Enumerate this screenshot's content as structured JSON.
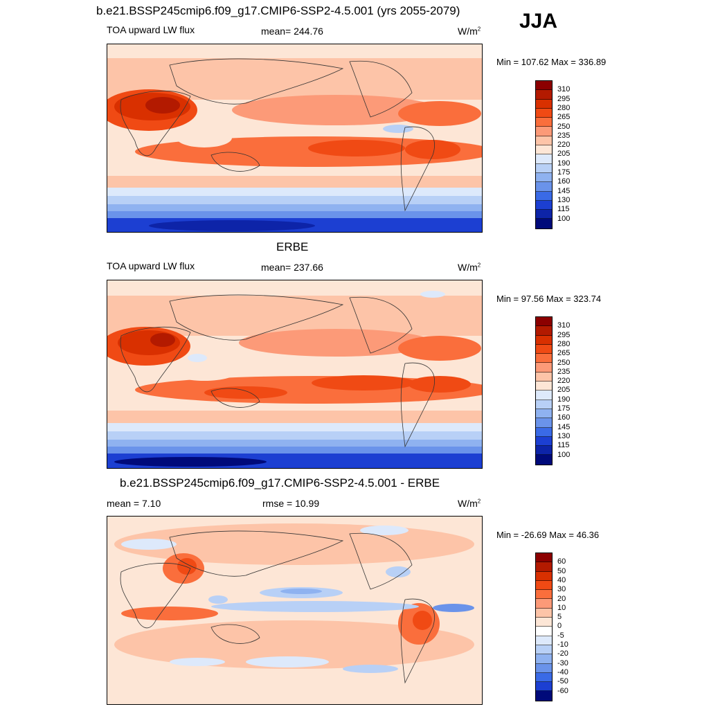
{
  "header": {
    "title": "b.e21.BSSP245cmip6.f09_g17.CMIP6-SSP2-4.5.001 (yrs 2055-2079)",
    "season": "JJA"
  },
  "panels": [
    {
      "title": "",
      "left_label": "TOA upward LW flux",
      "center_label": "mean= 244.76",
      "units": "W/m",
      "units_sup": "2",
      "minmax": "Min = 107.62 Max = 336.89",
      "colorbar_ticks": [
        "310",
        "295",
        "280",
        "265",
        "250",
        "235",
        "220",
        "205",
        "190",
        "175",
        "160",
        "145",
        "130",
        "115",
        "100"
      ]
    },
    {
      "title": "ERBE",
      "left_label": "TOA upward LW flux",
      "center_label": "mean= 237.66",
      "units": "W/m",
      "units_sup": "2",
      "minmax": "Min =  97.56 Max = 323.74",
      "colorbar_ticks": [
        "310",
        "295",
        "280",
        "265",
        "250",
        "235",
        "220",
        "205",
        "190",
        "175",
        "160",
        "145",
        "130",
        "115",
        "100"
      ]
    },
    {
      "title": "b.e21.BSSP245cmip6.f09_g17.CMIP6-SSP2-4.5.001 - ERBE",
      "left_label": "mean =   7.10",
      "center_label": "rmse =  10.99",
      "units": "W/m",
      "units_sup": "2",
      "minmax": "Min = -26.69 Max =  46.36",
      "colorbar_ticks": [
        "60",
        "50",
        "40",
        "30",
        "20",
        "10",
        "5",
        "0",
        "-5",
        "-10",
        "-20",
        "-30",
        "-40",
        "-50",
        "-60"
      ]
    }
  ],
  "colors": {
    "absolute_bins": [
      "#8c0000",
      "#b31a00",
      "#d93000",
      "#f04a14",
      "#fa6e3c",
      "#fc9a78",
      "#fdc4a8",
      "#fde6d6",
      "#dde9fb",
      "#b8d0f6",
      "#8fb2f0",
      "#6a93ea",
      "#3a6ae6",
      "#1c3fd2",
      "#0d24a8",
      "#000a7a"
    ],
    "diff_bins": [
      "#8c0000",
      "#b31a00",
      "#d93000",
      "#f04a14",
      "#fa6e3c",
      "#fc9a78",
      "#fdc4a8",
      "#fde6d6",
      "#ffffff",
      "#dde9fb",
      "#b8d0f6",
      "#8fb2f0",
      "#6a93ea",
      "#3a6ae6",
      "#1c3fd2",
      "#000a7a"
    ]
  },
  "chart_data": [
    {
      "type": "heatmap",
      "title": "b.e21.BSSP245cmip6.f09_g17.CMIP6-SSP2-4.5.001 (yrs 2055-2079)",
      "variable": "TOA upward LW flux",
      "units": "W/m2",
      "season": "JJA",
      "mean": 244.76,
      "min": 107.62,
      "max": 336.89,
      "contour_levels": [
        100,
        115,
        130,
        145,
        160,
        175,
        190,
        205,
        220,
        235,
        250,
        265,
        280,
        295,
        310
      ]
    },
    {
      "type": "heatmap",
      "title": "ERBE",
      "variable": "TOA upward LW flux",
      "units": "W/m2",
      "mean": 237.66,
      "min": 97.56,
      "max": 323.74,
      "contour_levels": [
        100,
        115,
        130,
        145,
        160,
        175,
        190,
        205,
        220,
        235,
        250,
        265,
        280,
        295,
        310
      ]
    },
    {
      "type": "heatmap",
      "title": "b.e21.BSSP245cmip6.f09_g17.CMIP6-SSP2-4.5.001 - ERBE",
      "units": "W/m2",
      "mean": 7.1,
      "rmse": 10.99,
      "min": -26.69,
      "max": 46.36,
      "contour_levels": [
        -60,
        -50,
        -40,
        -30,
        -20,
        -10,
        -5,
        0,
        5,
        10,
        20,
        30,
        40,
        50,
        60
      ]
    }
  ]
}
